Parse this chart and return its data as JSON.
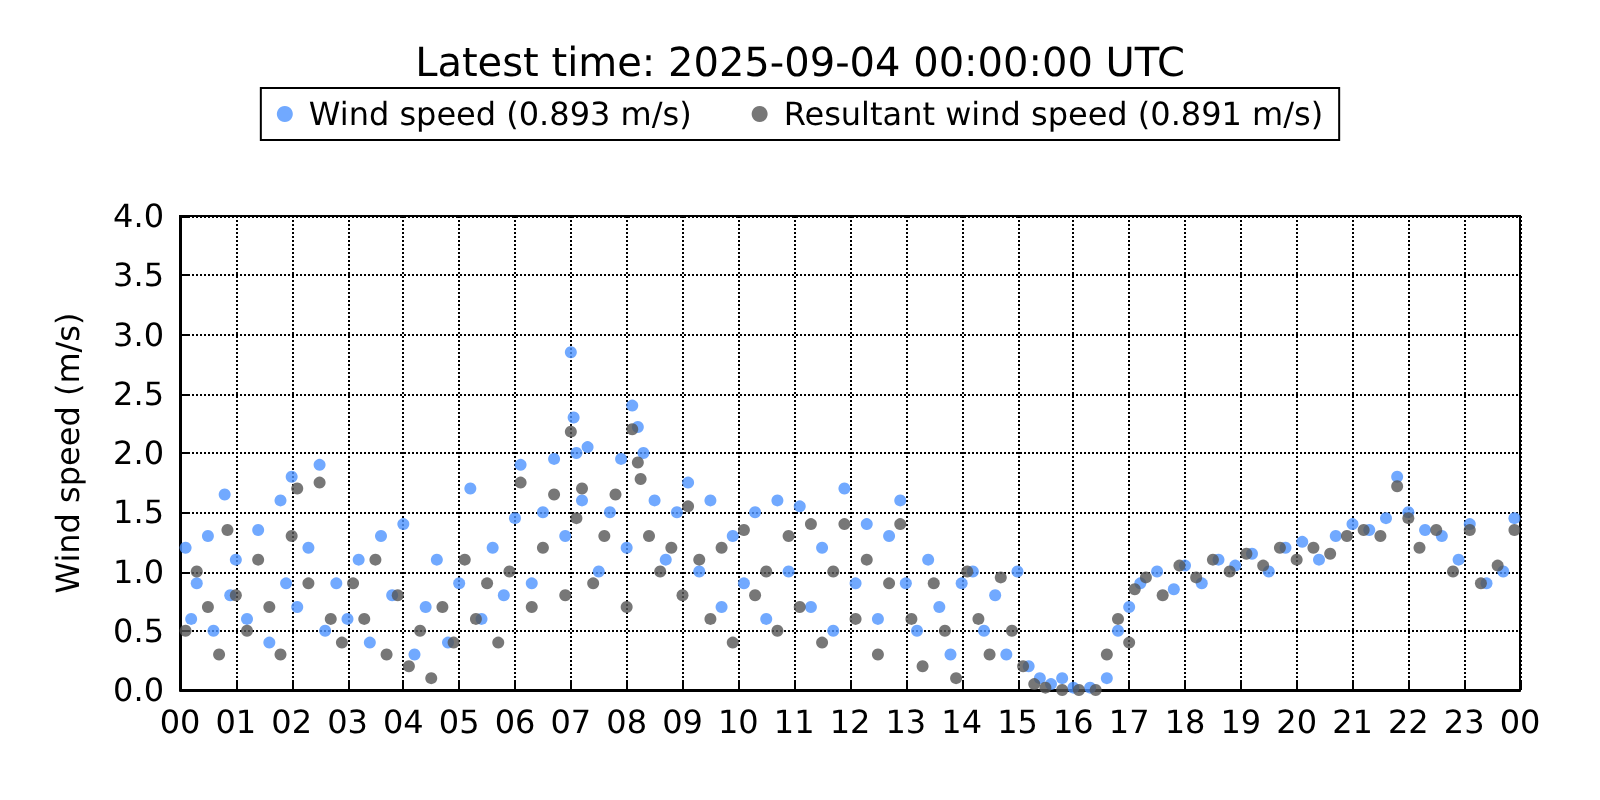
{
  "chart_data": {
    "type": "scatter",
    "title": "Latest time: 2025-09-04 00:00:00 UTC",
    "ylabel": "Wind speed (m/s)",
    "xlim": [
      0,
      24
    ],
    "xticks": [
      {
        "value": 0,
        "label": "00"
      },
      {
        "value": 1,
        "label": "01"
      },
      {
        "value": 2,
        "label": "02"
      },
      {
        "value": 3,
        "label": "03"
      },
      {
        "value": 4,
        "label": "04"
      },
      {
        "value": 5,
        "label": "05"
      },
      {
        "value": 6,
        "label": "06"
      },
      {
        "value": 7,
        "label": "07"
      },
      {
        "value": 8,
        "label": "08"
      },
      {
        "value": 9,
        "label": "09"
      },
      {
        "value": 10,
        "label": "10"
      },
      {
        "value": 11,
        "label": "11"
      },
      {
        "value": 12,
        "label": "12"
      },
      {
        "value": 13,
        "label": "13"
      },
      {
        "value": 14,
        "label": "14"
      },
      {
        "value": 15,
        "label": "15"
      },
      {
        "value": 16,
        "label": "16"
      },
      {
        "value": 17,
        "label": "17"
      },
      {
        "value": 18,
        "label": "18"
      },
      {
        "value": 19,
        "label": "19"
      },
      {
        "value": 20,
        "label": "20"
      },
      {
        "value": 21,
        "label": "21"
      },
      {
        "value": 22,
        "label": "22"
      },
      {
        "value": 23,
        "label": "23"
      },
      {
        "value": 24,
        "label": "00"
      }
    ],
    "ylim": [
      0,
      4
    ],
    "yticks": [
      {
        "value": 0,
        "label": "0.0"
      },
      {
        "value": 0.5,
        "label": "0.5"
      },
      {
        "value": 1,
        "label": "1.0"
      },
      {
        "value": 1.5,
        "label": "1.5"
      },
      {
        "value": 2,
        "label": "2.0"
      },
      {
        "value": 2.5,
        "label": "2.5"
      },
      {
        "value": 3,
        "label": "3.0"
      },
      {
        "value": 3.5,
        "label": "3.5"
      },
      {
        "value": 4,
        "label": "4.0"
      }
    ],
    "grid": true,
    "legend": "top",
    "marker": "circle",
    "series": [
      {
        "name": "Wind speed (0.893 m/s)",
        "color": "#4d94ff",
        "x": [
          0.1,
          0.2,
          0.3,
          0.5,
          0.6,
          0.8,
          0.9,
          1.0,
          1.2,
          1.4,
          1.6,
          1.8,
          1.9,
          2.0,
          2.1,
          2.3,
          2.5,
          2.6,
          2.8,
          3.0,
          3.2,
          3.4,
          3.6,
          3.8,
          4.0,
          4.2,
          4.4,
          4.6,
          4.8,
          5.0,
          5.2,
          5.4,
          5.6,
          5.8,
          6.0,
          6.1,
          6.3,
          6.5,
          6.7,
          6.9,
          7.0,
          7.05,
          7.1,
          7.2,
          7.3,
          7.5,
          7.7,
          7.9,
          8.0,
          8.1,
          8.2,
          8.3,
          8.5,
          8.7,
          8.9,
          9.1,
          9.3,
          9.5,
          9.7,
          9.9,
          10.1,
          10.3,
          10.5,
          10.7,
          10.9,
          11.1,
          11.3,
          11.5,
          11.7,
          11.9,
          12.1,
          12.3,
          12.5,
          12.7,
          12.9,
          13.0,
          13.2,
          13.4,
          13.6,
          13.8,
          14.0,
          14.2,
          14.4,
          14.6,
          14.8,
          15.0,
          15.2,
          15.4,
          15.6,
          15.8,
          16.0,
          16.3,
          16.6,
          16.8,
          17.0,
          17.2,
          17.5,
          17.8,
          18.0,
          18.3,
          18.6,
          18.9,
          19.2,
          19.5,
          19.8,
          20.1,
          20.4,
          20.7,
          21.0,
          21.3,
          21.6,
          21.8,
          22.0,
          22.3,
          22.6,
          22.9,
          23.1,
          23.4,
          23.7,
          23.9
        ],
        "values": [
          1.2,
          0.6,
          0.9,
          1.3,
          0.5,
          1.65,
          0.8,
          1.1,
          0.6,
          1.35,
          0.4,
          1.6,
          0.9,
          1.8,
          0.7,
          1.2,
          1.9,
          0.5,
          0.9,
          0.6,
          1.1,
          0.4,
          1.3,
          0.8,
          1.4,
          0.3,
          0.7,
          1.1,
          0.4,
          0.9,
          1.7,
          0.6,
          1.2,
          0.8,
          1.45,
          1.9,
          0.9,
          1.5,
          1.95,
          1.3,
          2.85,
          2.3,
          2.0,
          1.6,
          2.05,
          1.0,
          1.5,
          1.95,
          1.2,
          2.4,
          2.22,
          2.0,
          1.6,
          1.1,
          1.5,
          1.75,
          1.0,
          1.6,
          0.7,
          1.3,
          0.9,
          1.5,
          0.6,
          1.6,
          1.0,
          1.55,
          0.7,
          1.2,
          0.5,
          1.7,
          0.9,
          1.4,
          0.6,
          1.3,
          1.6,
          0.9,
          0.5,
          1.1,
          0.7,
          0.3,
          0.9,
          1.0,
          0.5,
          0.8,
          0.3,
          1.0,
          0.2,
          0.1,
          0.05,
          0.1,
          0.02,
          0.02,
          0.1,
          0.5,
          0.7,
          0.9,
          1.0,
          0.85,
          1.05,
          0.9,
          1.1,
          1.05,
          1.15,
          1.0,
          1.2,
          1.25,
          1.1,
          1.3,
          1.4,
          1.35,
          1.45,
          1.8,
          1.5,
          1.35,
          1.3,
          1.1,
          1.4,
          0.9,
          1.0,
          1.45
        ]
      },
      {
        "name": "Resultant wind speed (0.891 m/s)",
        "color": "#555555",
        "x": [
          0.1,
          0.3,
          0.5,
          0.7,
          0.85,
          1.0,
          1.2,
          1.4,
          1.6,
          1.8,
          2.0,
          2.1,
          2.3,
          2.5,
          2.7,
          2.9,
          3.1,
          3.3,
          3.5,
          3.7,
          3.9,
          4.1,
          4.3,
          4.5,
          4.7,
          4.9,
          5.1,
          5.3,
          5.5,
          5.7,
          5.9,
          6.1,
          6.3,
          6.5,
          6.7,
          6.9,
          7.0,
          7.1,
          7.2,
          7.4,
          7.6,
          7.8,
          8.0,
          8.1,
          8.2,
          8.25,
          8.4,
          8.6,
          8.8,
          9.0,
          9.1,
          9.3,
          9.5,
          9.7,
          9.9,
          10.1,
          10.3,
          10.5,
          10.7,
          10.9,
          11.1,
          11.3,
          11.5,
          11.7,
          11.9,
          12.1,
          12.3,
          12.5,
          12.7,
          12.9,
          13.1,
          13.3,
          13.5,
          13.7,
          13.9,
          14.1,
          14.3,
          14.5,
          14.7,
          14.9,
          15.1,
          15.3,
          15.5,
          15.8,
          16.1,
          16.4,
          16.6,
          16.8,
          17.0,
          17.1,
          17.3,
          17.6,
          17.9,
          18.2,
          18.5,
          18.8,
          19.1,
          19.4,
          19.7,
          20.0,
          20.3,
          20.6,
          20.9,
          21.2,
          21.5,
          21.8,
          22.0,
          22.2,
          22.5,
          22.8,
          23.1,
          23.3,
          23.6,
          23.9
        ],
        "values": [
          0.5,
          1.0,
          0.7,
          0.3,
          1.35,
          0.8,
          0.5,
          1.1,
          0.7,
          0.3,
          1.3,
          1.7,
          0.9,
          1.75,
          0.6,
          0.4,
          0.9,
          0.6,
          1.1,
          0.3,
          0.8,
          0.2,
          0.5,
          0.1,
          0.7,
          0.4,
          1.1,
          0.6,
          0.9,
          0.4,
          1.0,
          1.75,
          0.7,
          1.2,
          1.65,
          0.8,
          2.18,
          1.45,
          1.7,
          0.9,
          1.3,
          1.65,
          0.7,
          2.2,
          1.92,
          1.78,
          1.3,
          1.0,
          1.2,
          0.8,
          1.55,
          1.1,
          0.6,
          1.2,
          0.4,
          1.35,
          0.8,
          1.0,
          0.5,
          1.3,
          0.7,
          1.4,
          0.4,
          1.0,
          1.4,
          0.6,
          1.1,
          0.3,
          0.9,
          1.4,
          0.6,
          0.2,
          0.9,
          0.5,
          0.1,
          1.0,
          0.6,
          0.3,
          0.95,
          0.5,
          0.2,
          0.05,
          0.02,
          0,
          0,
          0,
          0.3,
          0.6,
          0.4,
          0.85,
          0.95,
          0.8,
          1.05,
          0.95,
          1.1,
          1.0,
          1.15,
          1.05,
          1.2,
          1.1,
          1.2,
          1.15,
          1.3,
          1.35,
          1.3,
          1.72,
          1.45,
          1.2,
          1.35,
          1.0,
          1.35,
          0.9,
          1.05,
          1.35
        ]
      }
    ]
  }
}
